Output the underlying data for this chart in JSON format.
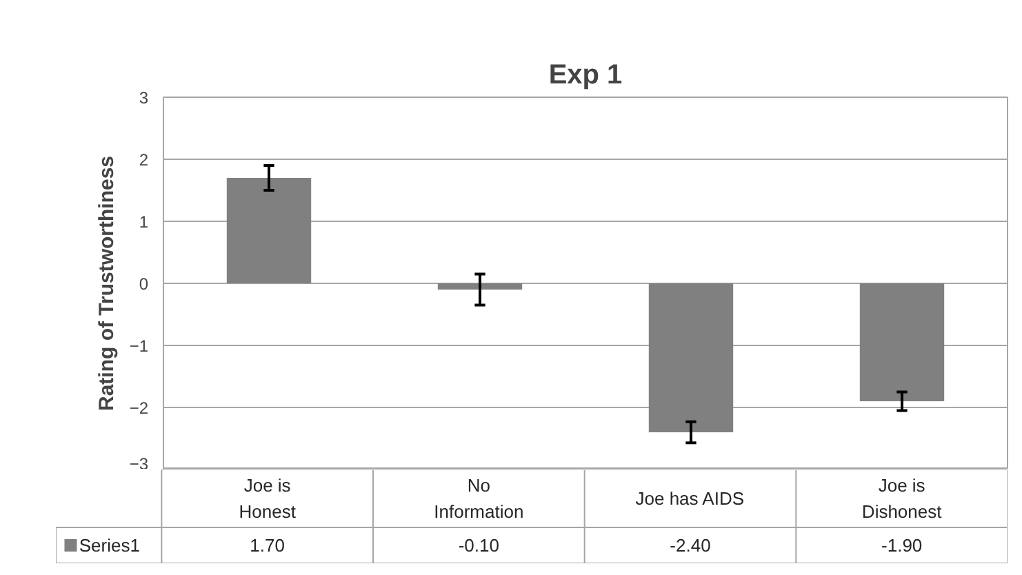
{
  "chart_data": {
    "type": "bar",
    "title": "Exp 1",
    "ylabel": "Rating of Trustworthiness",
    "categories": [
      "Joe is Honest",
      "No Information",
      "Joe has AIDS",
      "Joe is Dishonest"
    ],
    "series": [
      {
        "name": "Series1",
        "color": "#808080",
        "values": [
          1.7,
          -0.1,
          -2.4,
          -1.9
        ],
        "errors": [
          0.2,
          0.25,
          0.17,
          0.15
        ],
        "value_labels": [
          "1.70",
          "-0.10",
          "-2.40",
          "-1.90"
        ]
      }
    ],
    "ylim": [
      -3,
      3
    ],
    "yticks": [
      -3,
      -2,
      -1,
      0,
      1,
      2,
      3
    ],
    "grid": "y",
    "legend": "bottom"
  }
}
